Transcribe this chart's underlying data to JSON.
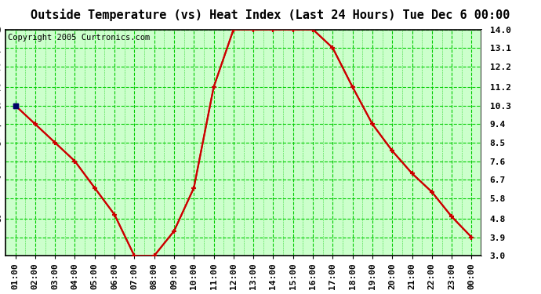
{
  "title": "Outside Temperature (vs) Heat Index (Last 24 Hours) Tue Dec 6 00:00",
  "copyright": "Copyright 2005 Curtronics.com",
  "hours": [
    "01:00",
    "02:00",
    "03:00",
    "04:00",
    "05:00",
    "06:00",
    "07:00",
    "08:00",
    "09:00",
    "10:00",
    "11:00",
    "12:00",
    "13:00",
    "14:00",
    "15:00",
    "16:00",
    "17:00",
    "18:00",
    "19:00",
    "20:00",
    "21:00",
    "22:00",
    "23:00",
    "00:00"
  ],
  "values": [
    10.3,
    9.4,
    8.5,
    7.6,
    6.3,
    5.0,
    3.0,
    3.0,
    4.2,
    6.3,
    11.2,
    14.0,
    14.0,
    14.0,
    14.0,
    14.0,
    13.1,
    11.2,
    9.4,
    8.1,
    7.0,
    6.1,
    4.9,
    3.9
  ],
  "ylim": [
    3.0,
    14.0
  ],
  "yticks": [
    3.0,
    3.9,
    4.8,
    5.8,
    6.7,
    7.6,
    8.5,
    9.4,
    10.3,
    11.2,
    12.2,
    13.1,
    14.0
  ],
  "bg_color": "#ccffcc",
  "line_color": "#cc0000",
  "marker_color": "#cc0000",
  "grid_color": "#00cc00",
  "title_bg": "#ffffff",
  "border_color": "#000000",
  "title_fontsize": 11,
  "copyright_fontsize": 7.5,
  "tick_fontsize": 8,
  "figsize": [
    6.9,
    3.75
  ],
  "dpi": 100
}
